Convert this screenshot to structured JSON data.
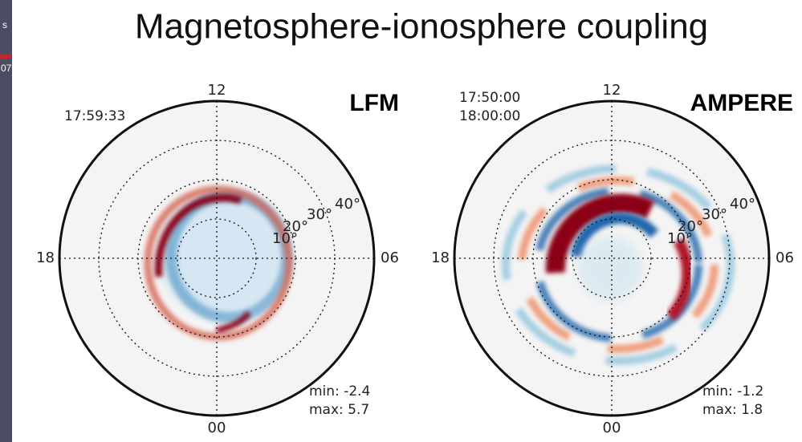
{
  "title": "Magnetosphere-ionosphere coupling",
  "sidebar": {
    "texts": [
      "s",
      "07"
    ]
  },
  "panels": [
    {
      "label": "LFM",
      "times": [
        "17:59:33"
      ],
      "hours": {
        "top": "12",
        "bottom": "00",
        "left": "18",
        "right": "06"
      },
      "rings": [
        "10°",
        "20°",
        "30°",
        "40°"
      ],
      "min": "min: -2.4",
      "max": "max: 5.7"
    },
    {
      "label": "AMPERE",
      "times": [
        "17:50:00",
        "18:00:00"
      ],
      "hours": {
        "top": "12",
        "bottom": "00",
        "left": "18",
        "right": "06"
      },
      "rings": [
        "10°",
        "20°",
        "30°",
        "40°"
      ],
      "min": "min: -1.2",
      "max": "max: 1.8"
    }
  ]
}
